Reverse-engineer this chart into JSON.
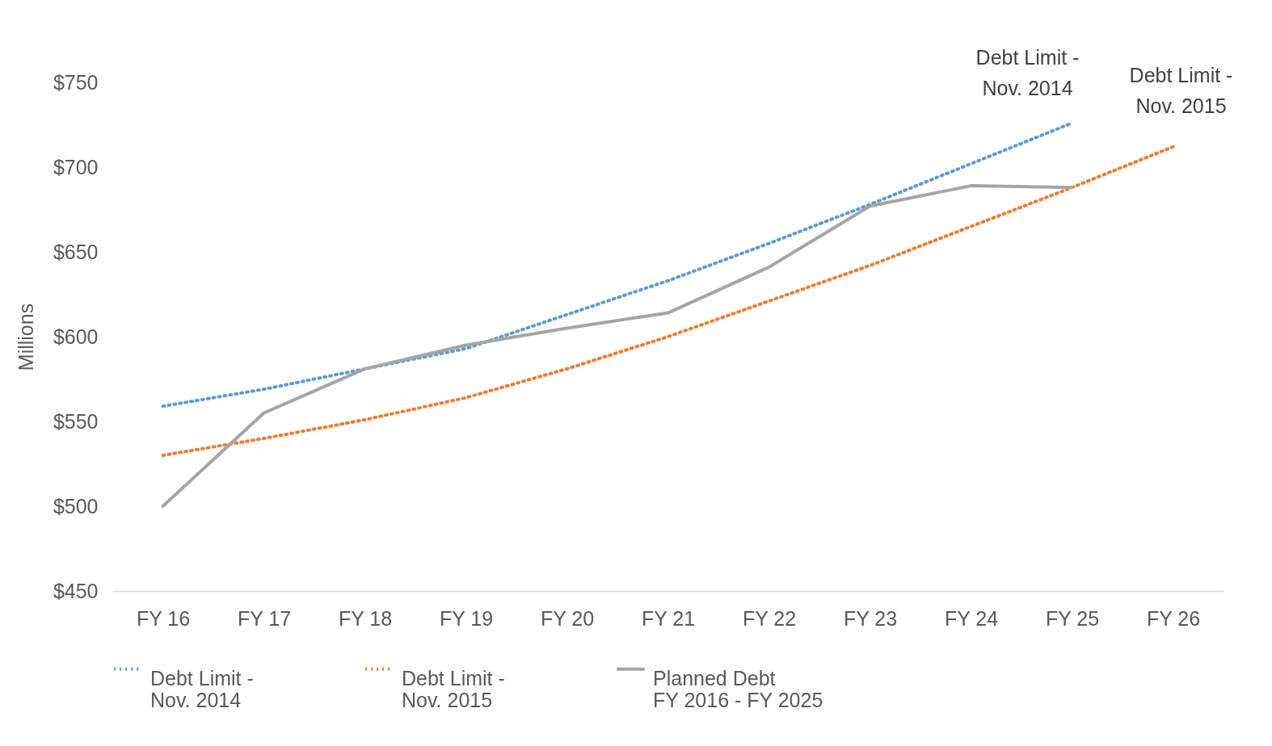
{
  "chart_data": {
    "type": "line",
    "categories": [
      "FY 16",
      "FY 17",
      "FY 18",
      "FY 19",
      "FY 20",
      "FY 21",
      "FY 22",
      "FY 23",
      "FY 24",
      "FY 25",
      "FY 26"
    ],
    "ylabel": "Millions",
    "ylim": [
      450,
      750
    ],
    "yticks": [
      {
        "value": 450,
        "label": "$450"
      },
      {
        "value": 500,
        "label": "$500"
      },
      {
        "value": 550,
        "label": "$550"
      },
      {
        "value": 600,
        "label": "$600"
      },
      {
        "value": 650,
        "label": "$650"
      },
      {
        "value": 700,
        "label": "$700"
      },
      {
        "value": 750,
        "label": "$750"
      }
    ],
    "grid": false,
    "legend": "bottom",
    "series": [
      {
        "name": "Debt Limit -\nNov. 2014",
        "color": "#5b9bd5",
        "line_style": "dotted",
        "values": [
          559,
          569,
          581,
          593,
          613,
          633,
          655,
          678,
          702,
          726,
          null
        ]
      },
      {
        "name": "Debt Limit -\nNov. 2015",
        "color": "#ed7d31",
        "line_style": "dotted",
        "values": [
          530,
          540,
          551,
          564,
          581,
          600,
          621,
          642,
          665,
          688,
          712
        ]
      },
      {
        "name": "Planned Debt\nFY 2016 - FY 2025",
        "color": "#a5a5a5",
        "line_style": "solid",
        "values": [
          500,
          555,
          581,
          595,
          605,
          614,
          641,
          677,
          689,
          688,
          null
        ]
      }
    ],
    "annotations": [
      {
        "text": "Debt Limit -\nNov. 2014",
        "x": "FY 25",
        "y": 726
      },
      {
        "text": "Debt Limit -\nNov. 2015",
        "x": "FY 26",
        "y": 712
      }
    ]
  }
}
